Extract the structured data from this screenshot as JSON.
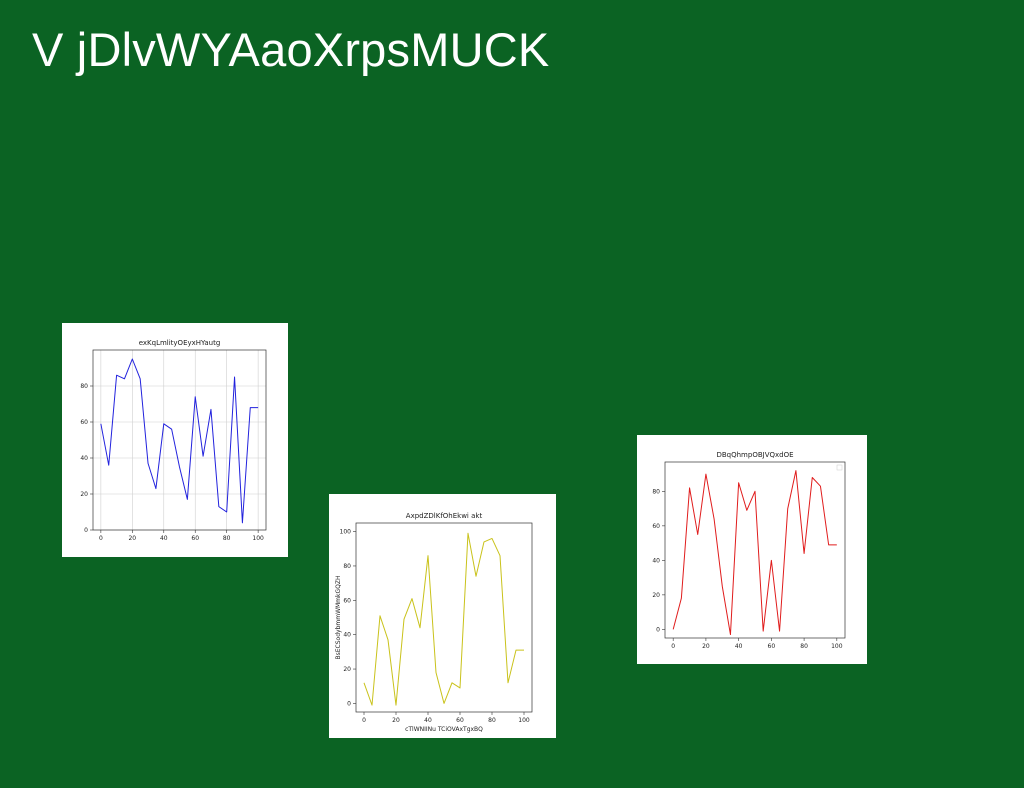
{
  "slide": {
    "title": "V jDlvWYAaoXrpsMUCK"
  },
  "chart_data": [
    {
      "type": "line",
      "title": "exKqLmlityOEyxHYautg",
      "xlabel": "",
      "ylabel": "",
      "x": [
        0,
        5,
        10,
        15,
        20,
        25,
        30,
        35,
        40,
        45,
        50,
        55,
        60,
        65,
        70,
        75,
        80,
        85,
        90,
        95,
        100
      ],
      "series": [
        {
          "color": "#2222dd",
          "values": [
            59,
            36,
            86,
            84,
            95,
            84,
            37,
            23,
            59,
            56,
            35,
            17,
            74,
            41,
            67,
            13,
            10,
            85,
            4,
            68,
            68
          ]
        }
      ],
      "xlim": [
        -5,
        105
      ],
      "ylim": [
        0,
        100
      ],
      "xticks": [
        0,
        20,
        40,
        60,
        80,
        100
      ],
      "yticks": [
        0,
        20,
        40,
        60,
        80
      ],
      "grid": true
    },
    {
      "type": "line",
      "title": "AxpdZDlKfOhEkwi akt",
      "xlabel": "cTlWNIINu TCiOVAxTgxBQ",
      "ylabel": "BsECSodybmmWMmkGQZH",
      "x": [
        0,
        5,
        10,
        15,
        20,
        25,
        30,
        35,
        40,
        45,
        50,
        55,
        60,
        65,
        70,
        75,
        80,
        85,
        90,
        95,
        100
      ],
      "series": [
        {
          "color": "#c9c21a",
          "values": [
            12,
            -1,
            51,
            37,
            -1,
            49,
            61,
            44,
            86,
            18,
            0,
            12,
            9,
            99,
            74,
            94,
            96,
            86,
            12,
            31,
            31
          ]
        }
      ],
      "xlim": [
        -5,
        105
      ],
      "ylim": [
        -5,
        105
      ],
      "xticks": [
        0,
        20,
        40,
        60,
        80,
        100
      ],
      "yticks": [
        0,
        20,
        40,
        60,
        80,
        100
      ],
      "grid": false
    },
    {
      "type": "line",
      "title": "DBqQhmpOBJVQxdOE",
      "xlabel": "",
      "ylabel": "",
      "x": [
        0,
        5,
        10,
        15,
        20,
        25,
        30,
        35,
        40,
        45,
        50,
        55,
        60,
        65,
        70,
        75,
        80,
        85,
        90,
        95,
        100
      ],
      "series": [
        {
          "color": "#e01c1c",
          "values": [
            0,
            18,
            82,
            55,
            90,
            64,
            25,
            -3,
            85,
            69,
            80,
            -1,
            40,
            -1,
            70,
            92,
            44,
            88,
            83,
            49,
            49
          ]
        }
      ],
      "xlim": [
        -5,
        105
      ],
      "ylim": [
        -5,
        97
      ],
      "xticks": [
        0,
        20,
        40,
        60,
        80,
        100
      ],
      "yticks": [
        0,
        20,
        40,
        60,
        80
      ],
      "grid": false,
      "legend": "top-right"
    }
  ]
}
